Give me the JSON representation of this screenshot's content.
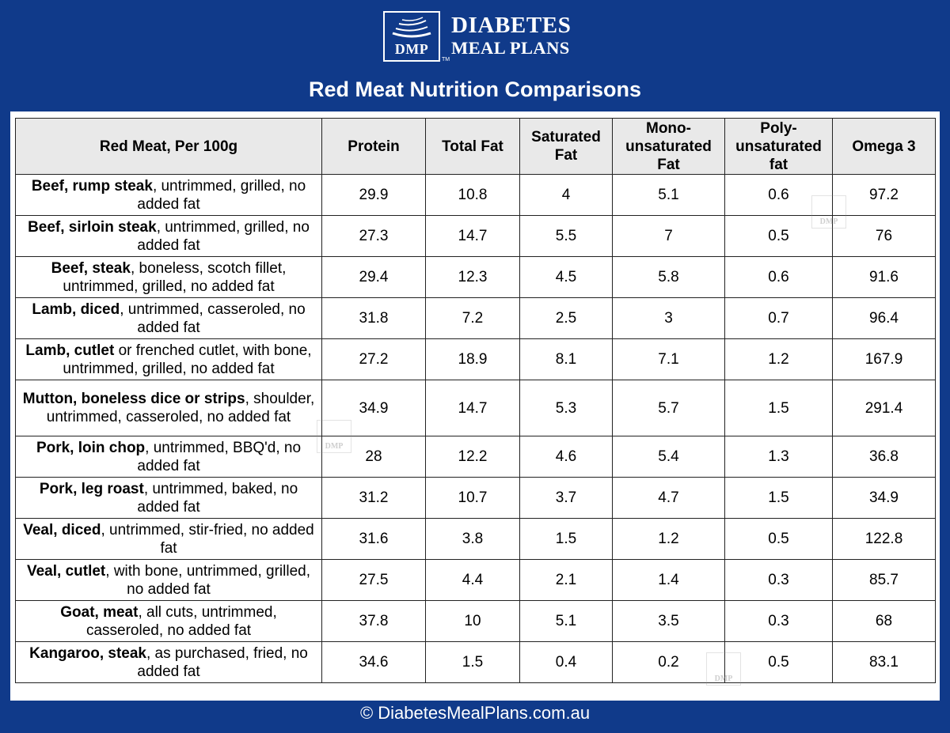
{
  "brand": {
    "logo_text": "DMP",
    "trademark": "TM",
    "line1": "DIABETES",
    "line2": "MEAL PLANS"
  },
  "title": "Red Meat Nutrition Comparisons",
  "table": {
    "headers": {
      "food": "Red Meat, Per 100g",
      "protein": "Protein",
      "total_fat": "Total Fat",
      "saturated_fat": "Saturated Fat",
      "mono_fat": "Mono-unsaturated Fat",
      "poly_fat": "Poly-unsaturated fat",
      "omega3": "Omega 3"
    },
    "rows": [
      {
        "name": "Beef, rump steak",
        "desc": ", untrimmed, grilled, no added fat",
        "protein": "29.9",
        "total_fat": "10.8",
        "saturated_fat": "4",
        "mono_fat": "5.1",
        "poly_fat": "0.6",
        "omega3": "97.2"
      },
      {
        "name": "Beef, sirloin steak",
        "desc": ", untrimmed, grilled, no added fat",
        "protein": "27.3",
        "total_fat": "14.7",
        "saturated_fat": "5.5",
        "mono_fat": "7",
        "poly_fat": "0.5",
        "omega3": "76"
      },
      {
        "name": "Beef, steak",
        "desc": ", boneless, scotch fillet, untrimmed, grilled, no added fat",
        "protein": "29.4",
        "total_fat": "12.3",
        "saturated_fat": "4.5",
        "mono_fat": "5.8",
        "poly_fat": "0.6",
        "omega3": "91.6"
      },
      {
        "name": "Lamb, diced",
        "desc": ", untrimmed, casseroled, no added fat",
        "protein": "31.8",
        "total_fat": "7.2",
        "saturated_fat": "2.5",
        "mono_fat": "3",
        "poly_fat": "0.7",
        "omega3": "96.4"
      },
      {
        "name": "Lamb, cutlet",
        "desc": " or frenched cutlet, with bone, untrimmed, grilled, no added fat",
        "protein": "27.2",
        "total_fat": "18.9",
        "saturated_fat": "8.1",
        "mono_fat": "7.1",
        "poly_fat": "1.2",
        "omega3": "167.9"
      },
      {
        "name": "Mutton, boneless dice or strips",
        "desc": ", shoulder, untrimmed, casseroled, no added fat",
        "protein": "34.9",
        "total_fat": "14.7",
        "saturated_fat": "5.3",
        "mono_fat": "5.7",
        "poly_fat": "1.5",
        "omega3": "291.4"
      },
      {
        "name": "Pork, loin chop",
        "desc": ", untrimmed, BBQ'd, no added fat",
        "protein": "28",
        "total_fat": "12.2",
        "saturated_fat": "4.6",
        "mono_fat": "5.4",
        "poly_fat": "1.3",
        "omega3": "36.8"
      },
      {
        "name": "Pork, leg roast",
        "desc": ", untrimmed, baked, no added fat",
        "protein": "31.2",
        "total_fat": "10.7",
        "saturated_fat": "3.7",
        "mono_fat": "4.7",
        "poly_fat": "1.5",
        "omega3": "34.9"
      },
      {
        "name": "Veal, diced",
        "desc": ", untrimmed, stir-fried, no added fat",
        "protein": "31.6",
        "total_fat": "3.8",
        "saturated_fat": "1.5",
        "mono_fat": "1.2",
        "poly_fat": "0.5",
        "omega3": "122.8"
      },
      {
        "name": "Veal, cutlet",
        "desc": ", with bone, untrimmed, grilled, no added fat",
        "protein": "27.5",
        "total_fat": "4.4",
        "saturated_fat": "2.1",
        "mono_fat": "1.4",
        "poly_fat": "0.3",
        "omega3": "85.7"
      },
      {
        "name": "Goat, meat",
        "desc": ", all cuts, untrimmed, casseroled, no added fat",
        "protein": "37.8",
        "total_fat": "10",
        "saturated_fat": "5.1",
        "mono_fat": "3.5",
        "poly_fat": "0.3",
        "omega3": "68"
      },
      {
        "name": "Kangaroo, steak",
        "desc": ", as purchased, fried, no added fat",
        "protein": "34.6",
        "total_fat": "1.5",
        "saturated_fat": "0.4",
        "mono_fat": "0.2",
        "poly_fat": "0.5",
        "omega3": "83.1"
      }
    ]
  },
  "watermark_text": "DMP",
  "footer": "© DiabetesMealPlans.com.au",
  "colors": {
    "background": "#103a8a",
    "header_cell": "#e9e9e9",
    "border": "#222222"
  }
}
